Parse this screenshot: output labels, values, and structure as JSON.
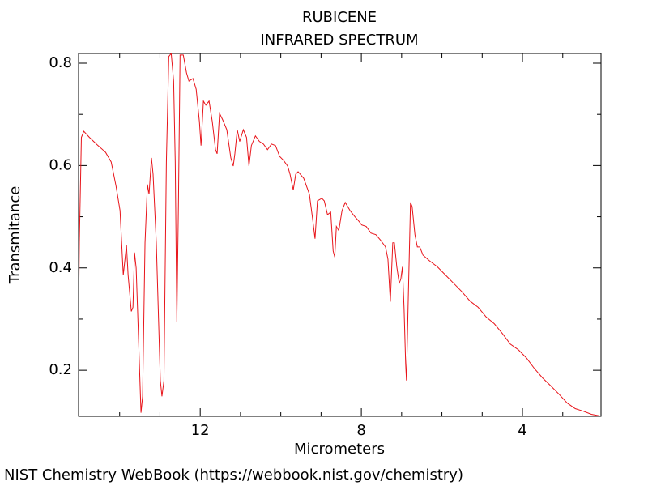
{
  "chart_data": {
    "type": "line",
    "title": "RUBICENE",
    "subtitle": "INFRARED SPECTRUM",
    "x_label": "Micrometers",
    "y_label": "Transmitance",
    "footer": "NIST Chemistry WebBook (https://webbook.nist.gov/chemistry)",
    "xlim": [
      15.02,
      2.05
    ],
    "ylim": [
      0.11,
      0.819
    ],
    "xticks": [
      12,
      8,
      4
    ],
    "xminorticks": [
      14,
      13,
      11,
      10,
      9,
      7,
      6,
      5,
      3
    ],
    "yticks": [
      0.8,
      0.6,
      0.4,
      0.2
    ],
    "yminorticks": [
      0.7,
      0.5,
      0.3
    ],
    "grid": false,
    "series": [
      {
        "color": "#e8141a",
        "x": [
          15.02,
          15.0,
          14.95,
          14.89,
          14.75,
          14.55,
          14.35,
          14.21,
          14.09,
          13.99,
          13.91,
          13.83,
          13.79,
          13.71,
          13.67,
          13.63,
          13.59,
          13.53,
          13.47,
          13.43,
          13.37,
          13.31,
          13.27,
          13.21,
          13.17,
          13.09,
          12.99,
          12.95,
          12.9,
          12.84,
          12.78,
          12.72,
          12.66,
          12.62,
          12.58,
          12.54,
          12.5,
          12.42,
          12.34,
          12.28,
          12.18,
          12.1,
          12.02,
          11.98,
          11.92,
          11.86,
          11.78,
          11.7,
          11.62,
          11.58,
          11.52,
          11.44,
          11.34,
          11.24,
          11.18,
          11.14,
          11.08,
          11.02,
          10.93,
          10.85,
          10.79,
          10.73,
          10.63,
          10.53,
          10.43,
          10.33,
          10.23,
          10.13,
          10.03,
          9.93,
          9.83,
          9.77,
          9.69,
          9.63,
          9.57,
          9.43,
          9.29,
          9.21,
          9.15,
          9.09,
          8.98,
          8.92,
          8.84,
          8.76,
          8.7,
          8.66,
          8.62,
          8.56,
          8.48,
          8.4,
          8.28,
          8.16,
          8.08,
          7.99,
          7.88,
          7.76,
          7.64,
          7.52,
          7.4,
          7.34,
          7.28,
          7.22,
          7.18,
          7.12,
          7.06,
          7.02,
          6.98,
          6.94,
          6.9,
          6.88,
          6.84,
          6.78,
          6.74,
          6.67,
          6.61,
          6.55,
          6.47,
          6.31,
          6.11,
          5.91,
          5.71,
          5.51,
          5.3,
          5.1,
          4.9,
          4.7,
          4.5,
          4.3,
          4.1,
          3.9,
          3.7,
          3.5,
          3.29,
          3.09,
          2.89,
          2.69,
          2.49,
          2.29,
          2.09
        ],
        "values": [
          0.307,
          0.45,
          0.655,
          0.667,
          0.655,
          0.64,
          0.626,
          0.607,
          0.56,
          0.512,
          0.386,
          0.444,
          0.386,
          0.315,
          0.323,
          0.43,
          0.4,
          0.259,
          0.117,
          0.149,
          0.449,
          0.563,
          0.544,
          0.615,
          0.583,
          0.449,
          0.18,
          0.149,
          0.18,
          0.607,
          0.813,
          0.819,
          0.765,
          0.607,
          0.294,
          0.528,
          0.816,
          0.816,
          0.781,
          0.765,
          0.77,
          0.749,
          0.686,
          0.639,
          0.726,
          0.718,
          0.726,
          0.686,
          0.631,
          0.623,
          0.702,
          0.689,
          0.67,
          0.615,
          0.599,
          0.623,
          0.67,
          0.647,
          0.67,
          0.655,
          0.599,
          0.639,
          0.658,
          0.647,
          0.642,
          0.631,
          0.642,
          0.639,
          0.618,
          0.61,
          0.599,
          0.583,
          0.552,
          0.583,
          0.588,
          0.575,
          0.544,
          0.496,
          0.457,
          0.531,
          0.536,
          0.531,
          0.504,
          0.509,
          0.433,
          0.421,
          0.481,
          0.473,
          0.512,
          0.528,
          0.512,
          0.5,
          0.493,
          0.484,
          0.481,
          0.468,
          0.465,
          0.454,
          0.441,
          0.417,
          0.334,
          0.449,
          0.449,
          0.402,
          0.37,
          0.378,
          0.402,
          0.322,
          0.212,
          0.18,
          0.322,
          0.528,
          0.52,
          0.465,
          0.441,
          0.441,
          0.425,
          0.414,
          0.402,
          0.386,
          0.37,
          0.354,
          0.335,
          0.323,
          0.304,
          0.291,
          0.272,
          0.251,
          0.24,
          0.224,
          0.203,
          0.185,
          0.169,
          0.153,
          0.136,
          0.125,
          0.12,
          0.114,
          0.111
        ]
      }
    ]
  }
}
